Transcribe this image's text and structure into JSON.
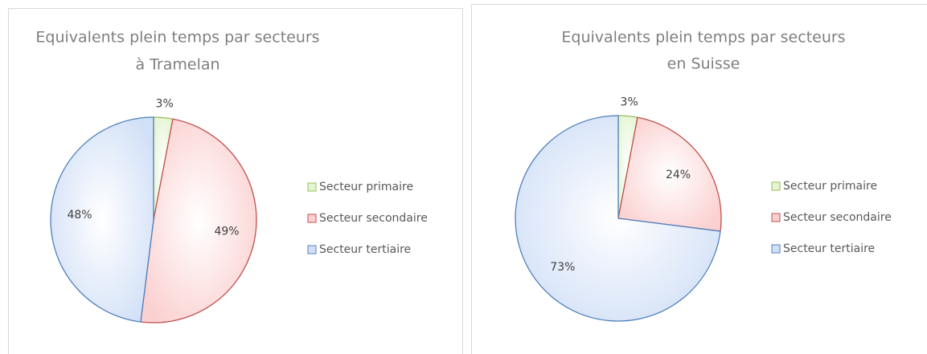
{
  "chart_data": [
    {
      "type": "pie",
      "title": [
        "Equivalents plein temps par secteurs",
        "à Tramelan"
      ],
      "categories": [
        "Secteur primaire",
        "Secteur secondaire",
        "Secteur tertiaire"
      ],
      "values": [
        3,
        49,
        48
      ],
      "value_labels": [
        "3%",
        "49%",
        "48%"
      ],
      "colors": [
        "#e4f5d3",
        "#fbd0d0",
        "#d2e0f7"
      ],
      "edge_colors": [
        "#9bbb59",
        "#c0504d",
        "#4f81bd"
      ],
      "legend": "right"
    },
    {
      "type": "pie",
      "title": [
        "Equivalents plein temps par secteurs",
        "en Suisse"
      ],
      "categories": [
        "Secteur primaire",
        "Secteur secondaire",
        "Secteur tertiaire"
      ],
      "values": [
        3,
        24,
        73
      ],
      "value_labels": [
        "3%",
        "24%",
        "73%"
      ],
      "colors": [
        "#e4f5d3",
        "#fbd0d0",
        "#d2e0f7"
      ],
      "edge_colors": [
        "#9bbb59",
        "#c0504d",
        "#4f81bd"
      ],
      "legend": "right"
    }
  ]
}
